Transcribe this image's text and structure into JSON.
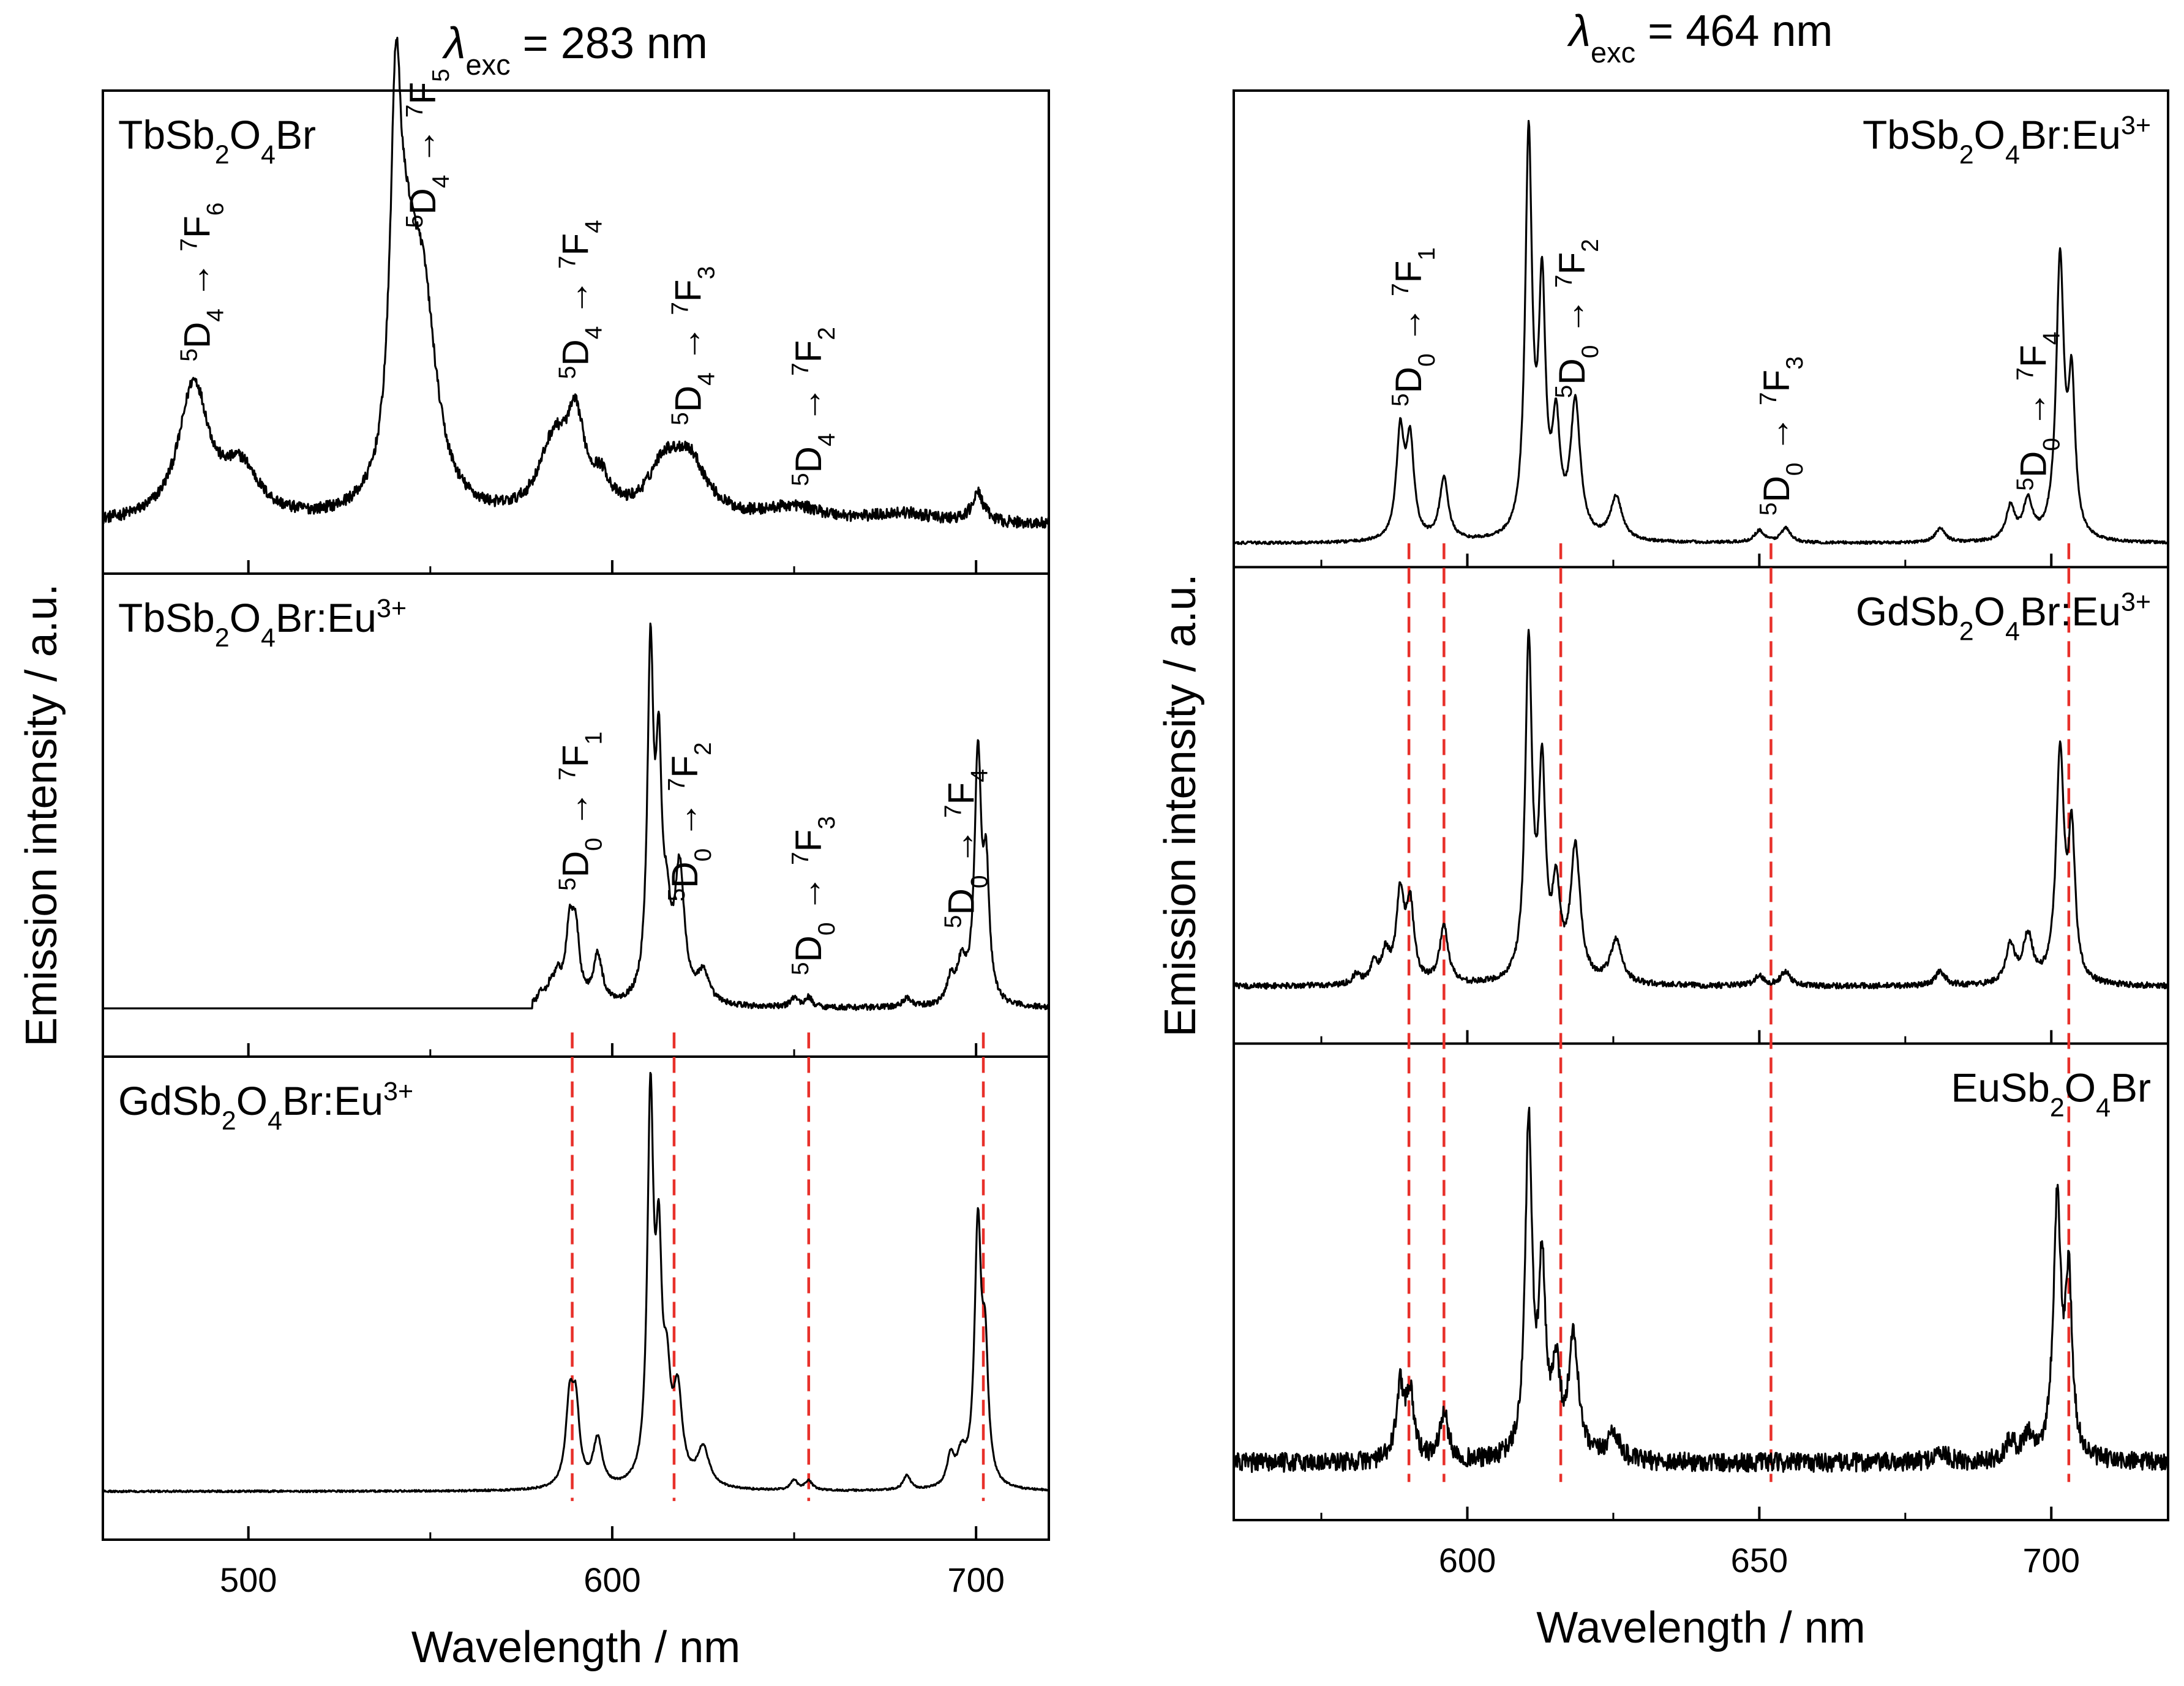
{
  "chart_data": [
    {
      "type": "line",
      "title": "λexc = 283 nm",
      "title_parts": {
        "symbol": "λ",
        "sub": "exc",
        "rest": " = 283 nm"
      },
      "xlabel": "Wavelength / nm",
      "ylabel": "Emission intensity / a.u.",
      "xlim": [
        460,
        720
      ],
      "xticks": [
        500,
        600,
        700
      ],
      "xticks_minor": [
        550,
        650
      ],
      "yticks": "none",
      "grid": false,
      "stacked_panels": [
        {
          "sample": "TbSb2O4Br",
          "sample_parts": [
            [
              "Tb",
              ""
            ],
            [
              "Sb",
              ""
            ],
            [
              "2",
              "sub"
            ],
            [
              "O",
              ""
            ],
            [
              "4",
              "sub"
            ],
            [
              "Br",
              ""
            ]
          ],
          "label_position": "top-left",
          "baseline": 0.1,
          "series": [
            {
              "peaks": [
                {
                  "x": 485,
                  "h": 0.28,
                  "w": 5
                },
                {
                  "x": 498,
                  "h": 0.1,
                  "w": 6
                },
                {
                  "x": 540.5,
                  "h": 0.7,
                  "w": 1.8
                },
                {
                  "x": 543.5,
                  "h": 0.33,
                  "w": 3.5
                },
                {
                  "x": 548,
                  "h": 0.4,
                  "w": 4.5
                },
                {
                  "x": 584,
                  "h": 0.15,
                  "w": 5
                },
                {
                  "x": 590,
                  "h": 0.17,
                  "w": 3
                },
                {
                  "x": 597,
                  "h": 0.06,
                  "w": 3
                },
                {
                  "x": 614,
                  "h": 0.09,
                  "w": 5
                },
                {
                  "x": 621,
                  "h": 0.12,
                  "w": 6
                },
                {
                  "x": 650,
                  "h": 0.03,
                  "w": 10
                },
                {
                  "x": 680,
                  "h": 0.02,
                  "w": 10
                },
                {
                  "x": 700.5,
                  "h": 0.06,
                  "w": 2
                }
              ],
              "noise": 0.012
            }
          ],
          "annotations": [
            {
              "x": 486,
              "level": "^5D_4 → ^7F_6"
            },
            {
              "x": 548,
              "level": "^5D_4 → ^7F_5"
            },
            {
              "x": 590,
              "level": "^5D_4 → ^7F_4"
            },
            {
              "x": 621,
              "level": "^5D_4 → ^7F_3"
            },
            {
              "x": 654,
              "level": "^5D_4 → ^7F_2"
            }
          ]
        },
        {
          "sample": "TbSb2O4Br:Eu3+",
          "sample_parts": [
            [
              "Tb",
              ""
            ],
            [
              "Sb",
              ""
            ],
            [
              "2",
              "sub"
            ],
            [
              "O",
              ""
            ],
            [
              "4",
              "sub"
            ],
            [
              "Br:Eu",
              ""
            ],
            [
              "3+",
              "sup"
            ]
          ],
          "label_position": "top-left",
          "baseline": 0.1,
          "series": [
            {
              "peaks": [
                {
                  "x": 580.5,
                  "h": 0.02,
                  "w": 1.2
                },
                {
                  "x": 583,
                  "h": 0.03,
                  "w": 1.2
                },
                {
                  "x": 585,
                  "h": 0.05,
                  "w": 1.2
                },
                {
                  "x": 588.3,
                  "h": 0.15,
                  "w": 1.3
                },
                {
                  "x": 590,
                  "h": 0.13,
                  "w": 1.2
                },
                {
                  "x": 596,
                  "h": 0.1,
                  "w": 1.5
                },
                {
                  "x": 610.5,
                  "h": 0.7,
                  "w": 1.0
                },
                {
                  "x": 612.8,
                  "h": 0.45,
                  "w": 1.0
                },
                {
                  "x": 615,
                  "h": 0.14,
                  "w": 1.2
                },
                {
                  "x": 618.5,
                  "h": 0.27,
                  "w": 1.6
                },
                {
                  "x": 625,
                  "h": 0.06,
                  "w": 2
                },
                {
                  "x": 650,
                  "h": 0.02,
                  "w": 1.2
                },
                {
                  "x": 654,
                  "h": 0.02,
                  "w": 1.2
                },
                {
                  "x": 681,
                  "h": 0.02,
                  "w": 1.2
                },
                {
                  "x": 693,
                  "h": 0.05,
                  "w": 1.2
                },
                {
                  "x": 696,
                  "h": 0.08,
                  "w": 1.5
                },
                {
                  "x": 700.5,
                  "h": 0.51,
                  "w": 1.1
                },
                {
                  "x": 702.8,
                  "h": 0.25,
                  "w": 1.0
                }
              ],
              "start": 578,
              "noise": 0.006
            }
          ],
          "annotations": [
            {
              "x": 590,
              "level": "^5D_0 → ^7F_1"
            },
            {
              "x": 620,
              "level": "^5D_0 → ^7F_2"
            },
            {
              "x": 654,
              "level": "^5D_0 → ^7F_3"
            },
            {
              "x": 696,
              "level": "^5D_0 → ^7F_4"
            }
          ]
        },
        {
          "sample": "GdSb2O4Br:Eu3+",
          "sample_parts": [
            [
              "Gd",
              ""
            ],
            [
              "Sb",
              ""
            ],
            [
              "2",
              "sub"
            ],
            [
              "O",
              ""
            ],
            [
              "4",
              "sub"
            ],
            [
              "Br:Eu",
              ""
            ],
            [
              "3+",
              "sup"
            ]
          ],
          "label_position": "top-left",
          "baseline": 0.1,
          "series": [
            {
              "peaks": [
                {
                  "x": 588.3,
                  "h": 0.17,
                  "w": 1.3
                },
                {
                  "x": 590,
                  "h": 0.15,
                  "w": 1.2
                },
                {
                  "x": 596,
                  "h": 0.1,
                  "w": 1.5
                },
                {
                  "x": 610.5,
                  "h": 0.78,
                  "w": 1.0
                },
                {
                  "x": 612.8,
                  "h": 0.42,
                  "w": 1.0
                },
                {
                  "x": 615,
                  "h": 0.18,
                  "w": 1.2
                },
                {
                  "x": 618,
                  "h": 0.18,
                  "w": 1.5
                },
                {
                  "x": 625,
                  "h": 0.08,
                  "w": 2
                },
                {
                  "x": 650,
                  "h": 0.02,
                  "w": 1.2
                },
                {
                  "x": 654,
                  "h": 0.02,
                  "w": 1.2
                },
                {
                  "x": 681,
                  "h": 0.03,
                  "w": 1.2
                },
                {
                  "x": 693,
                  "h": 0.06,
                  "w": 1.2
                },
                {
                  "x": 696,
                  "h": 0.06,
                  "w": 1.5
                },
                {
                  "x": 700.5,
                  "h": 0.53,
                  "w": 1.1
                },
                {
                  "x": 702.5,
                  "h": 0.25,
                  "w": 1.0
                }
              ],
              "noise": 0.002
            }
          ],
          "annotations": []
        }
      ],
      "dashed_lines_x": [
        589,
        617,
        654,
        702
      ]
    },
    {
      "type": "line",
      "title": "λexc = 464 nm",
      "title_parts": {
        "symbol": "λ",
        "sub": "exc",
        "rest": " = 464 nm"
      },
      "xlabel": "Wavelength / nm",
      "ylabel": "Emission intensity / a.u.",
      "xlim": [
        560,
        720
      ],
      "xticks": [
        600,
        650,
        700
      ],
      "xticks_minor": [
        575,
        625,
        675
      ],
      "yticks": "none",
      "grid": false,
      "stacked_panels": [
        {
          "sample": "TbSb2O4Br:Eu3+",
          "sample_parts": [
            [
              "Tb",
              ""
            ],
            [
              "Sb",
              ""
            ],
            [
              "2",
              "sub"
            ],
            [
              "O",
              ""
            ],
            [
              "4",
              "sub"
            ],
            [
              "Br:Eu",
              ""
            ],
            [
              "3+",
              "sup"
            ]
          ],
          "label_position": "top-right",
          "baseline": 0.05,
          "series": [
            {
              "peaks": [
                {
                  "x": 588.5,
                  "h": 0.22,
                  "w": 0.8
                },
                {
                  "x": 590.2,
                  "h": 0.2,
                  "w": 0.8
                },
                {
                  "x": 596,
                  "h": 0.13,
                  "w": 0.9
                },
                {
                  "x": 610.5,
                  "h": 0.83,
                  "w": 0.7
                },
                {
                  "x": 612.8,
                  "h": 0.5,
                  "w": 0.7
                },
                {
                  "x": 615.2,
                  "h": 0.22,
                  "w": 0.8
                },
                {
                  "x": 618.5,
                  "h": 0.28,
                  "w": 1.0
                },
                {
                  "x": 625.5,
                  "h": 0.09,
                  "w": 1.2
                },
                {
                  "x": 650,
                  "h": 0.025,
                  "w": 1.0
                },
                {
                  "x": 654.5,
                  "h": 0.03,
                  "w": 1.0
                },
                {
                  "x": 681,
                  "h": 0.03,
                  "w": 1.0
                },
                {
                  "x": 693,
                  "h": 0.07,
                  "w": 0.9
                },
                {
                  "x": 696,
                  "h": 0.08,
                  "w": 1.0
                },
                {
                  "x": 701.5,
                  "h": 0.58,
                  "w": 0.8
                },
                {
                  "x": 703.5,
                  "h": 0.31,
                  "w": 0.7
                }
              ],
              "noise": 0.003
            }
          ],
          "annotations": [
            {
              "x": 590,
              "level": "^5D_0 → ^7F_1"
            },
            {
              "x": 618,
              "level": "^5D_0 → ^7F_2"
            },
            {
              "x": 653,
              "level": "^5D_0 → ^7F_3"
            },
            {
              "x": 697,
              "level": "^5D_0 → ^7F_4"
            }
          ]
        },
        {
          "sample": "GdSb2O4Br:Eu3+",
          "sample_parts": [
            [
              "Gd",
              ""
            ],
            [
              "Sb",
              ""
            ],
            [
              "2",
              "sub"
            ],
            [
              "O",
              ""
            ],
            [
              "4",
              "sub"
            ],
            [
              "Br:Eu",
              ""
            ],
            [
              "3+",
              "sup"
            ]
          ],
          "label_position": "top-right",
          "baseline": 0.12,
          "series": [
            {
              "peaks": [
                {
                  "x": 581,
                  "h": 0.02,
                  "w": 0.8
                },
                {
                  "x": 584,
                  "h": 0.04,
                  "w": 0.8
                },
                {
                  "x": 586,
                  "h": 0.06,
                  "w": 0.8
                },
                {
                  "x": 588.5,
                  "h": 0.18,
                  "w": 0.8
                },
                {
                  "x": 590.2,
                  "h": 0.16,
                  "w": 0.8
                },
                {
                  "x": 596,
                  "h": 0.12,
                  "w": 0.9
                },
                {
                  "x": 610.5,
                  "h": 0.7,
                  "w": 0.7
                },
                {
                  "x": 612.8,
                  "h": 0.42,
                  "w": 0.7
                },
                {
                  "x": 615.2,
                  "h": 0.18,
                  "w": 0.8
                },
                {
                  "x": 618.5,
                  "h": 0.28,
                  "w": 1.0
                },
                {
                  "x": 625.5,
                  "h": 0.09,
                  "w": 1.2
                },
                {
                  "x": 650,
                  "h": 0.02,
                  "w": 1.0
                },
                {
                  "x": 654.5,
                  "h": 0.03,
                  "w": 1.0
                },
                {
                  "x": 681,
                  "h": 0.03,
                  "w": 1.0
                },
                {
                  "x": 693,
                  "h": 0.08,
                  "w": 0.9
                },
                {
                  "x": 696,
                  "h": 0.1,
                  "w": 1.0
                },
                {
                  "x": 701.5,
                  "h": 0.48,
                  "w": 0.8
                },
                {
                  "x": 703.5,
                  "h": 0.3,
                  "w": 0.7
                }
              ],
              "noise": 0.006
            }
          ],
          "annotations": []
        },
        {
          "sample": "EuSb2O4Br",
          "sample_parts": [
            [
              "Eu",
              ""
            ],
            [
              "Sb",
              ""
            ],
            [
              "2",
              "sub"
            ],
            [
              "O",
              ""
            ],
            [
              "4",
              "sub"
            ],
            [
              "Br",
              ""
            ]
          ],
          "label_position": "top-right",
          "baseline": 0.12,
          "series": [
            {
              "peaks": [
                {
                  "x": 588.5,
                  "h": 0.15,
                  "w": 0.8
                },
                {
                  "x": 590.2,
                  "h": 0.14,
                  "w": 0.8
                },
                {
                  "x": 596,
                  "h": 0.1,
                  "w": 0.9
                },
                {
                  "x": 610.5,
                  "h": 0.7,
                  "w": 0.7
                },
                {
                  "x": 612.8,
                  "h": 0.38,
                  "w": 0.7
                },
                {
                  "x": 615.2,
                  "h": 0.18,
                  "w": 0.8
                },
                {
                  "x": 618.2,
                  "h": 0.25,
                  "w": 1.0
                },
                {
                  "x": 625,
                  "h": 0.06,
                  "w": 1.2
                },
                {
                  "x": 681,
                  "h": 0.02,
                  "w": 1.5
                },
                {
                  "x": 693,
                  "h": 0.04,
                  "w": 1.0
                },
                {
                  "x": 696,
                  "h": 0.05,
                  "w": 1.0
                },
                {
                  "x": 701,
                  "h": 0.53,
                  "w": 0.8
                },
                {
                  "x": 703,
                  "h": 0.36,
                  "w": 0.7
                }
              ],
              "noise": 0.02
            }
          ],
          "annotations": []
        }
      ],
      "dashed_lines_x": [
        590,
        596,
        616,
        652,
        703
      ]
    }
  ],
  "colors": {
    "line": "#000000",
    "guide": "#e8302a"
  }
}
